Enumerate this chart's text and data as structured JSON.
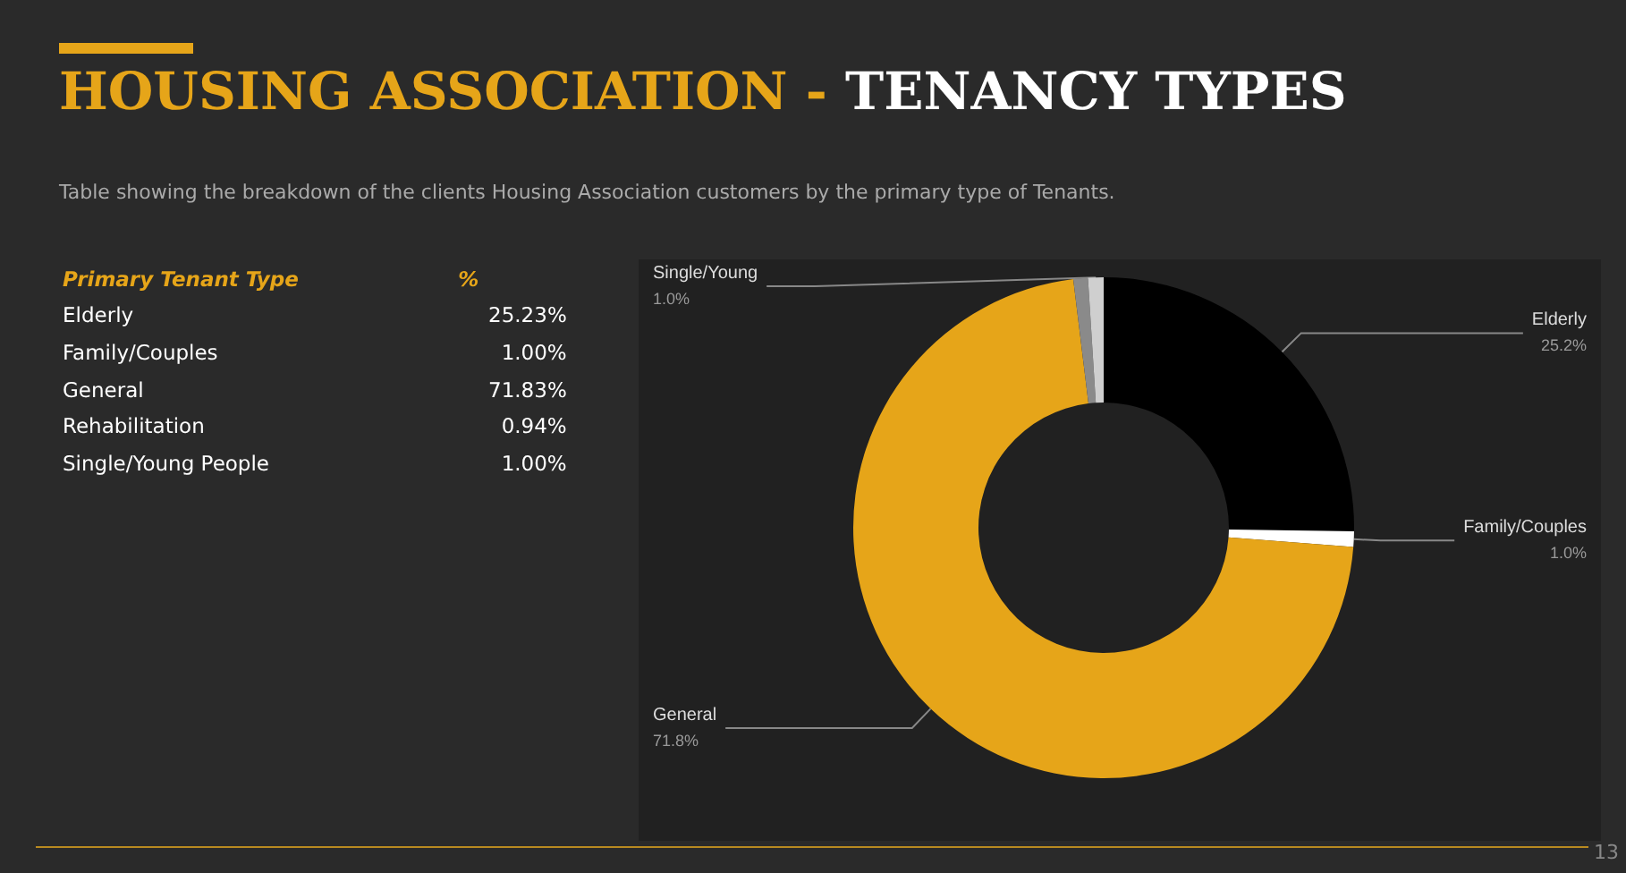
{
  "chart_data": [
    {
      "type": "other",
      "title": "HOUSING ASSOCIATION - TENANCY TYPES",
      "subtitle": "Table showing the breakdown of the clients Housing Association customers by the primary type of Tenants.",
      "xlabel": "Primary Tenant Type",
      "ylabel": "%",
      "categories": [
        "Elderly",
        "Family/Couples",
        "General",
        "Rehabilitation",
        "Single/Young People"
      ],
      "values": [
        25.23,
        1.0,
        71.83,
        0.94,
        1.0
      ],
      "value_labels": [
        "25.23%",
        "1.00%",
        "71.83%",
        "0.94%",
        "1.00%"
      ]
    },
    {
      "type": "donut",
      "categories": [
        "Elderly",
        "Family/Couples",
        "General",
        null,
        "Single/Young"
      ],
      "values": [
        25.23,
        1.0,
        71.83,
        0.94,
        1.0
      ],
      "colors": [
        "#000000",
        "#ffffff",
        "#e6a519",
        "#8a8a8a",
        "#cfcfcf"
      ],
      "value_labels": [
        "25.2%",
        "1.0%",
        "71.8%",
        null,
        "1.0%"
      ],
      "annotations": [
        "13"
      ]
    }
  ]
}
